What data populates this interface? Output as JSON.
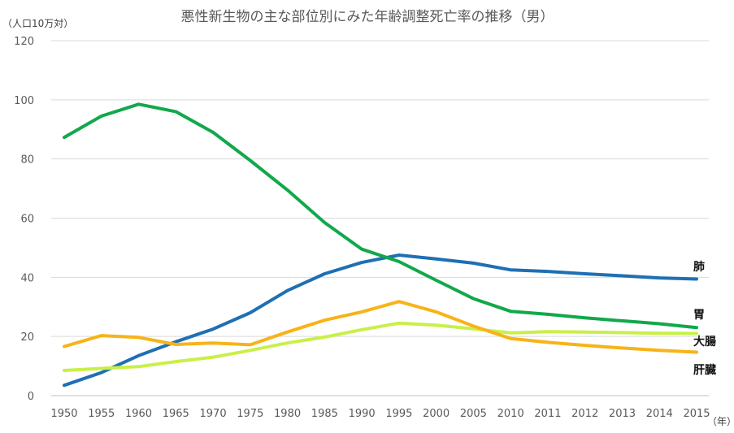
{
  "chart_data": {
    "type": "line",
    "title": "悪性新生物の主な部位別にみた年齢調整死亡率の推移（男）",
    "ylabel": "（人口10万対）",
    "xlabel": "（年）",
    "categories": [
      "1950",
      "1955",
      "1960",
      "1965",
      "1970",
      "1975",
      "1980",
      "1985",
      "1990",
      "1995",
      "2000",
      "2005",
      "2010",
      "2011",
      "2012",
      "2013",
      "2014",
      "2015"
    ],
    "ylim": [
      0,
      120
    ],
    "yticks": [
      0,
      20,
      40,
      60,
      80,
      100,
      120
    ],
    "grid": true,
    "legend": "inline-right",
    "series": [
      {
        "name": "肺",
        "color": "#1f6fb4",
        "values": [
          3.5,
          7.8,
          13.5,
          18.2,
          22.5,
          28.0,
          35.5,
          41.2,
          45.0,
          47.5,
          46.2,
          44.8,
          42.5,
          42.0,
          41.2,
          40.5,
          39.8,
          39.4
        ]
      },
      {
        "name": "胃",
        "color": "#12a84b",
        "values": [
          87.3,
          94.5,
          98.5,
          96.0,
          89.0,
          79.5,
          69.5,
          58.5,
          49.5,
          45.3,
          39.0,
          32.8,
          28.5,
          27.5,
          26.3,
          25.3,
          24.3,
          23.0
        ]
      },
      {
        "name": "大腸",
        "color": "#c8f047",
        "values": [
          8.5,
          9.2,
          9.8,
          11.5,
          13.0,
          15.3,
          17.8,
          19.8,
          22.3,
          24.5,
          23.8,
          22.6,
          21.2,
          21.6,
          21.5,
          21.3,
          21.1,
          21.0
        ]
      },
      {
        "name": "肝臓",
        "color": "#f7b318",
        "values": [
          16.6,
          20.3,
          19.7,
          17.3,
          17.8,
          17.2,
          21.5,
          25.5,
          28.3,
          31.8,
          28.3,
          23.5,
          19.3,
          18.0,
          17.0,
          16.1,
          15.3,
          14.7
        ]
      }
    ]
  }
}
